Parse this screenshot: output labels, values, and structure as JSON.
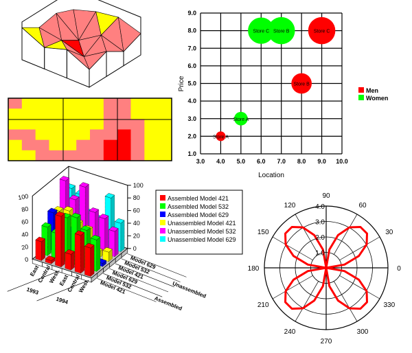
{
  "chart_data": [
    {
      "type": "surface",
      "title": "",
      "z_grid": [
        [
          5,
          7,
          4,
          6
        ],
        [
          8,
          3,
          6,
          8
        ],
        [
          6,
          5,
          2,
          7
        ],
        [
          9,
          6,
          7,
          5
        ]
      ],
      "zlim": [
        0,
        10
      ],
      "color_levels": [
        {
          "max": 3.5,
          "color": "#ff0000"
        },
        {
          "max": 6,
          "color": "#ff8080"
        },
        {
          "max": 10,
          "color": "#ffff00"
        }
      ]
    },
    {
      "type": "heatmap",
      "title": "",
      "z_grid": [
        [
          5,
          9,
          9,
          9,
          9,
          9,
          9,
          5,
          5,
          9,
          9,
          9
        ],
        [
          9,
          9,
          9,
          9,
          9,
          9,
          9,
          5,
          5,
          9,
          9,
          9
        ],
        [
          9,
          9,
          9,
          9,
          9,
          9,
          9,
          5,
          5,
          5,
          9,
          9
        ],
        [
          5,
          5,
          9,
          9,
          9,
          9,
          5,
          5,
          2,
          5,
          9,
          9
        ],
        [
          9,
          5,
          5,
          9,
          9,
          5,
          5,
          2,
          2,
          5,
          9,
          9
        ],
        [
          9,
          9,
          5,
          5,
          5,
          5,
          5,
          2,
          2,
          5,
          9,
          9
        ]
      ],
      "color_levels": [
        {
          "max": 3.5,
          "color": "#ff0000"
        },
        {
          "max": 6,
          "color": "#ff8080"
        },
        {
          "max": 10,
          "color": "#ffff00"
        }
      ]
    },
    {
      "type": "scatter",
      "subtype": "bubble",
      "xlabel": "Location",
      "ylabel": "Price",
      "xlim": [
        3,
        10
      ],
      "ylim": [
        1,
        9
      ],
      "xticks": [
        "3.0",
        "4.0",
        "5.0",
        "6.0",
        "7.0",
        "8.0",
        "9.0",
        "10.0"
      ],
      "yticks": [
        "1.0",
        "2.0",
        "3.0",
        "4.0",
        "5.0",
        "6.0",
        "7.0",
        "8.0",
        "9.0"
      ],
      "legend_position": "right",
      "series": [
        {
          "name": "Men",
          "color": "#ff0000",
          "points": [
            {
              "x": 4,
              "y": 2,
              "size": 1,
              "label": "Store A"
            },
            {
              "x": 8,
              "y": 5,
              "size": 4.5,
              "label": "Store B"
            },
            {
              "x": 9,
              "y": 8,
              "size": 8,
              "label": "Store C"
            }
          ]
        },
        {
          "name": "Women",
          "color": "#00ff00",
          "points": [
            {
              "x": 5,
              "y": 3,
              "size": 2,
              "label": "Store A"
            },
            {
              "x": 6,
              "y": 8,
              "size": 7.5,
              "label": "Store C"
            },
            {
              "x": 7,
              "y": 8,
              "size": 8,
              "label": "Store B"
            }
          ]
        }
      ]
    },
    {
      "type": "bar",
      "subtype": "3d",
      "categories": [
        "East",
        "Central",
        "West",
        "East",
        "Central",
        "West"
      ],
      "category_groups": [
        "1993",
        "1994"
      ],
      "row_labels": [
        "Model 421",
        "Model 532",
        "Model 629",
        "Model 421",
        "Model 532",
        "Model 629"
      ],
      "row_groups": [
        "Assembled",
        "Unassembled"
      ],
      "yticks": [
        "0",
        "20",
        "40",
        "60",
        "80",
        "100"
      ],
      "ylim": [
        0,
        100
      ],
      "legend_position": "right",
      "series": [
        {
          "name": "Assembled Model 421",
          "color": "#ff0000",
          "values": [
            30,
            5,
            80,
            25,
            60,
            45
          ]
        },
        {
          "name": "Assembled Model 532",
          "color": "#00ff00",
          "values": [
            45,
            40,
            70,
            75,
            60,
            50
          ]
        },
        {
          "name": "Assembled Model 629",
          "color": "#0000ff",
          "values": [
            60,
            35,
            40,
            10,
            10,
            5
          ]
        },
        {
          "name": "Unassembled Model 421",
          "color": "#ffff00",
          "values": [
            55,
            60,
            45,
            40,
            10,
            15
          ]
        },
        {
          "name": "Unassembled Model 532",
          "color": "#ff00ff",
          "values": [
            95,
            70,
            95,
            60,
            55,
            40
          ]
        },
        {
          "name": "Unassembled Model 629",
          "color": "#00ffff",
          "values": [
            75,
            70,
            45,
            40,
            80,
            45
          ]
        }
      ]
    },
    {
      "type": "line",
      "subtype": "polar",
      "angle_labels": [
        "0",
        "30",
        "60",
        "90",
        "120",
        "150",
        "180",
        "210",
        "240",
        "270",
        "300",
        "330"
      ],
      "radius_labels": [
        "1.0",
        "2.0",
        "3.0",
        "4.0"
      ],
      "rlim": [
        0,
        4
      ],
      "series": [
        {
          "name": "",
          "color": "#ff0000",
          "theta_deg": [
            0,
            10,
            20,
            30,
            40,
            50,
            60,
            70,
            80,
            90,
            100,
            110,
            120,
            130,
            140,
            150,
            160,
            170,
            180,
            190,
            200,
            210,
            220,
            230,
            240,
            250,
            260,
            270,
            280,
            290,
            300,
            310,
            320,
            330,
            340,
            350,
            360
          ],
          "r": [
            0,
            1.2,
            2.25,
            3.03,
            3.45,
            3.45,
            3.03,
            2.25,
            1.2,
            0,
            1.2,
            2.25,
            3.03,
            3.45,
            3.45,
            3.03,
            2.25,
            1.2,
            0,
            1.2,
            2.25,
            3.03,
            3.45,
            3.45,
            3.03,
            2.25,
            1.2,
            0,
            1.2,
            2.25,
            3.03,
            3.45,
            3.45,
            3.03,
            2.25,
            1.2,
            0
          ]
        }
      ]
    }
  ]
}
